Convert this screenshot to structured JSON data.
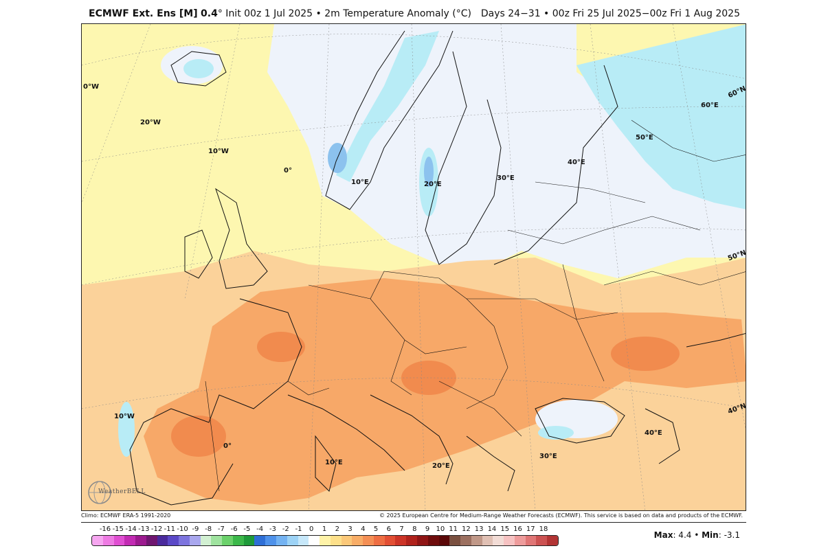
{
  "header": {
    "model_name": "ECMWF Ext. Ens [M]",
    "model_value": "0.4",
    "init_text": "° Init 00z 1 Jul 2025 • 2m Temperature Anomaly (°C)",
    "valid_text": "Days 24−31 • 00z Fri 25 Jul 2025−00z Fri 1 Aug 2025"
  },
  "map": {
    "lon_labels": [
      "0°W",
      "20°W",
      "10°W",
      "0°",
      "10°E",
      "20°E",
      "30°E",
      "40°E",
      "50°E",
      "60°E",
      "10°W",
      "0°",
      "10°E",
      "20°E",
      "30°E",
      "40°E"
    ],
    "lat_labels": [
      "60°N",
      "50°N",
      "40°N"
    ],
    "colors": {
      "light_yellow": "#fdf7b0",
      "pale_blue": "#eef3fb",
      "cyan": "#b8ecf6",
      "light_orange": "#fbd29a",
      "orange": "#f7a868",
      "dark_orange": "#f18b4e",
      "blue": "#8cc2ee"
    }
  },
  "logo": {
    "text": "WeatherBELL"
  },
  "credits": {
    "left": "Climo: ECMWF ERA-5 1991-2020",
    "right": "© 2025 European Centre for Medium-Range Weather Forecasts (ECMWF). This service is based on data and products of the ECMWF."
  },
  "colorbar": {
    "labels": [
      "-16",
      "-15",
      "-14",
      "-13",
      "-12",
      "-11",
      "-10",
      "-9",
      "-8",
      "-7",
      "-6",
      "-5",
      "-4",
      "-3",
      "-2",
      "-1",
      "0",
      "1",
      "2",
      "3",
      "4",
      "5",
      "6",
      "7",
      "8",
      "9",
      "10",
      "11",
      "12",
      "13",
      "14",
      "15",
      "16",
      "17",
      "18"
    ],
    "colors": [
      "#f6a6f0",
      "#ee7be3",
      "#e04fd2",
      "#c22bb3",
      "#9c1a8f",
      "#6f1670",
      "#4a2a9c",
      "#5b49c7",
      "#7d74de",
      "#a9a7ee",
      "#d2f0d2",
      "#9fe39f",
      "#6bd16b",
      "#3cb84a",
      "#1f9a3a",
      "#2f6fd6",
      "#4f92ea",
      "#74b3f2",
      "#9dd3f6",
      "#c7e8fa",
      "#ffffff",
      "#fff3a8",
      "#fde08a",
      "#fbc879",
      "#f8ad67",
      "#f48f55",
      "#ee6e43",
      "#e24f34",
      "#cc3427",
      "#b0221c",
      "#8f1515",
      "#6e0c0c",
      "#5a0808",
      "#7a5040",
      "#9c7060",
      "#c09888",
      "#e0c0b4",
      "#f2dcd6",
      "#f6c2c2",
      "#ee9c9c",
      "#e07676",
      "#cc5252",
      "#b23434"
    ]
  },
  "stats": {
    "max_label": "Max",
    "max_value": ": 4.4 • ",
    "min_label": "Min",
    "min_value": ": -3.1"
  }
}
